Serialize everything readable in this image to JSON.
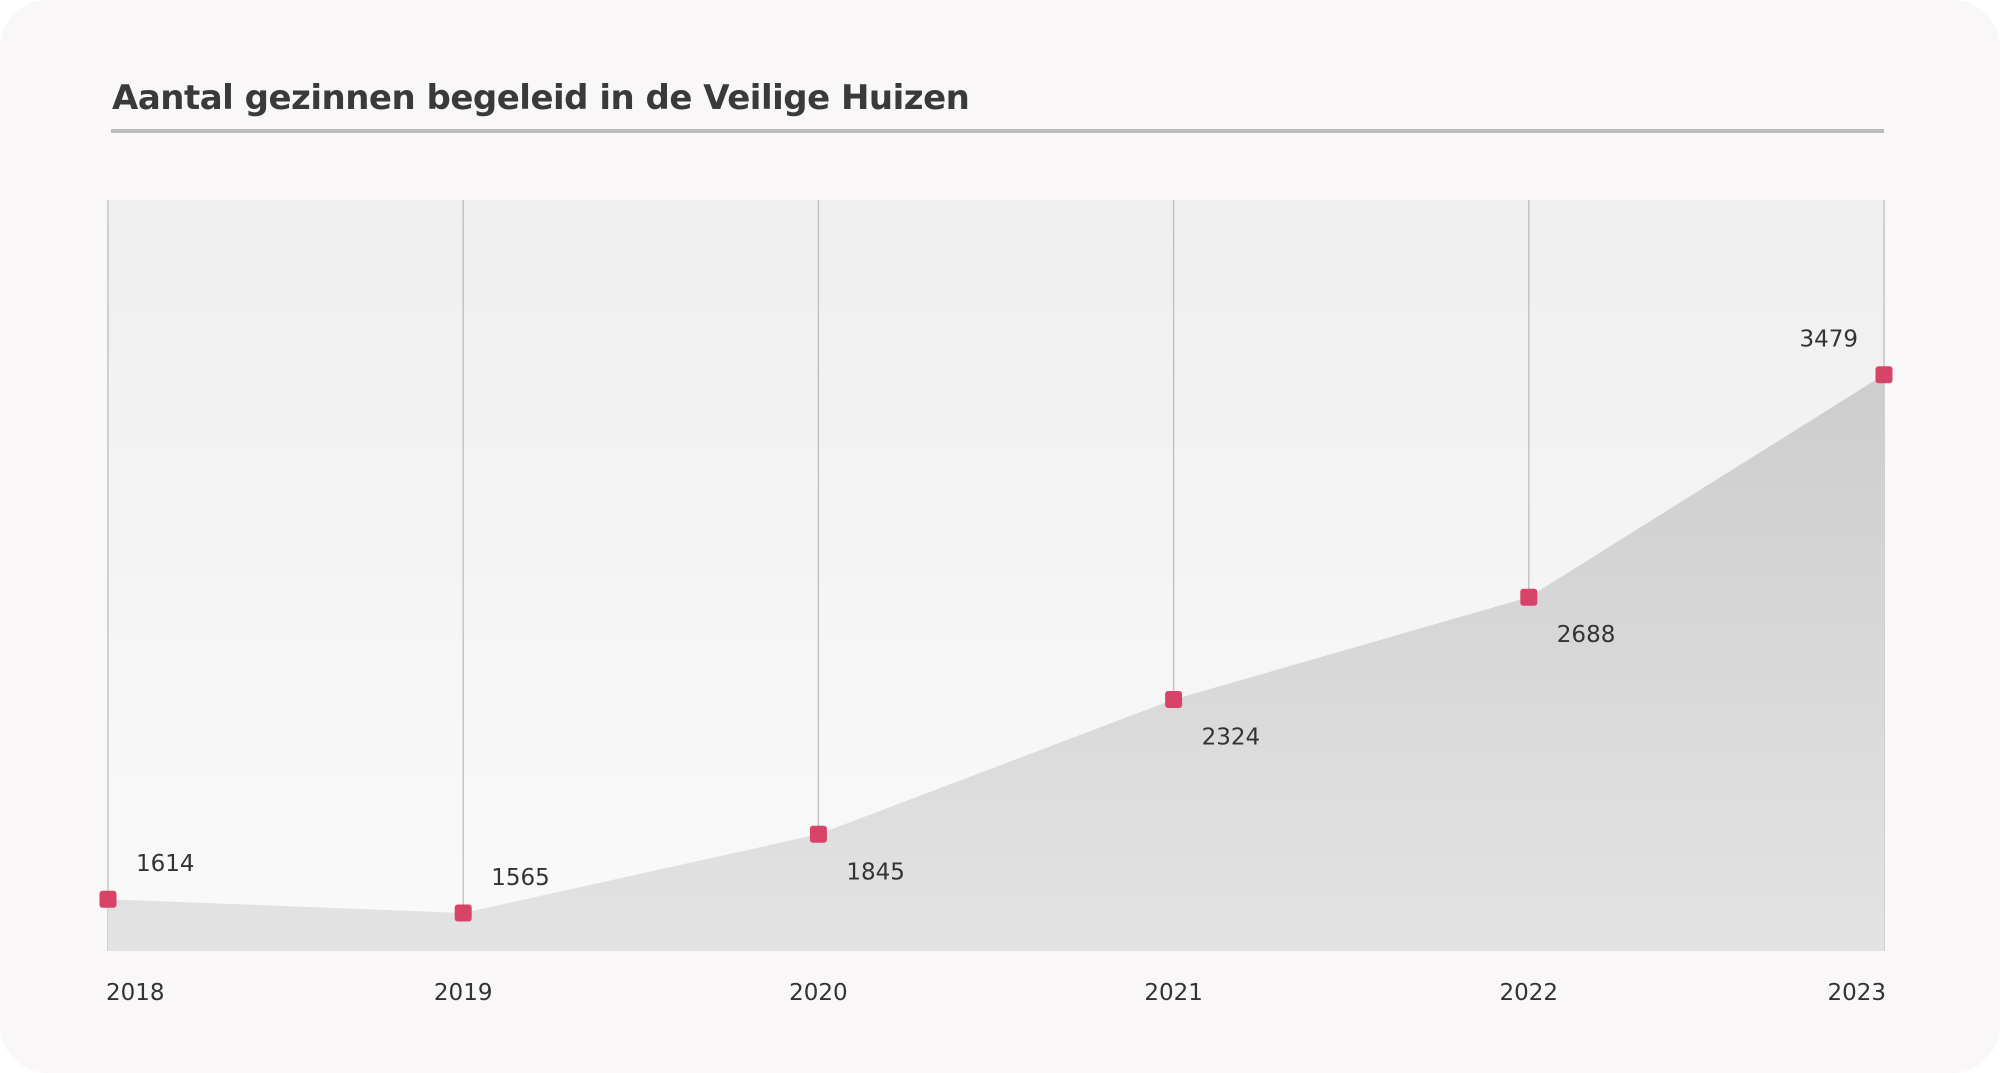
{
  "colors": {
    "background": "#f9f7f8",
    "title_text": "#3a3a3a",
    "title_rule": "#bcbcbc",
    "plot_top": "#efefef",
    "plot_bottom": "#fafafa",
    "area_top": "#cdcdcd",
    "area_bottom": "#e3e3e3",
    "gridline": "#bdbdbd",
    "marker": "#d84468",
    "label_text": "#333333"
  },
  "chart_data": {
    "type": "area",
    "title": "Aantal gezinnen begeleid in de Veilige Huizen",
    "categories": [
      "2018",
      "2019",
      "2020",
      "2021",
      "2022",
      "2023"
    ],
    "values": [
      1614,
      1565,
      1845,
      2324,
      2688,
      3479
    ],
    "data_labels": [
      "1614",
      "1565",
      "1845",
      "2324",
      "2688",
      "3479"
    ],
    "marker": "square",
    "grid": "vertical",
    "legend": "none",
    "ylim": [
      1430,
      4100
    ]
  }
}
